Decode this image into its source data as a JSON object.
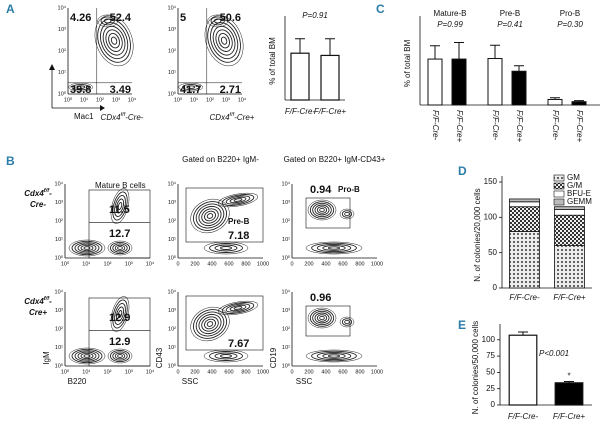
{
  "panel_labels": {
    "a": "A",
    "b": "B",
    "c": "C",
    "d": "D",
    "e": "E"
  },
  "log_ticks": [
    "10⁰",
    "10¹",
    "10²",
    "10³",
    "10⁴"
  ],
  "linear_ticks": [
    0,
    200,
    400,
    600,
    800,
    1000
  ],
  "flow_a": {
    "x_label": "Mac1",
    "plots": [
      {
        "quadrants": [
          4.26,
          52.4,
          39.8,
          3.49
        ],
        "caption": {
          "gene": "CDx4",
          "sup": "f/f",
          "dash": "-Cre-"
        }
      },
      {
        "quadrants": [
          5,
          50.6,
          41.7,
          2.71
        ],
        "caption": {
          "gene": "CDx4",
          "sup": "f/f",
          "dash": "-Cre+"
        }
      }
    ]
  },
  "flow_b": {
    "row_labels": [
      {
        "gene": "Cdx4",
        "sup": "f/f",
        "dash": "-",
        "line2": "Cre-"
      },
      {
        "gene": "Cdx4",
        "sup": "f/f",
        "dash": "-",
        "line2": "Cre+"
      }
    ],
    "columns": [
      {
        "heading": "Mature B cells",
        "x_label": "B220",
        "y_label": "IgM",
        "x_scale": "log"
      },
      {
        "heading": "Gated on B220+ IgM-",
        "x_label": "SSC",
        "y_label": "CD43",
        "x_scale": "linear",
        "gate_label": "Pre-B"
      },
      {
        "heading": "Gated on B220+ IgM-CD43+",
        "x_label": "SSC",
        "y_label": "CD19",
        "x_scale": "linear",
        "gate_label": "Pro-B"
      }
    ],
    "rows": [
      [
        [
          11.5,
          12.7
        ],
        [
          7.18
        ],
        [
          0.94
        ]
      ],
      [
        [
          12.9,
          12.9
        ],
        [
          7.67
        ],
        [
          0.96
        ]
      ]
    ]
  },
  "chart_data": [
    {
      "type": "bar",
      "annotation": "P=0.91",
      "ylabel": "% of total BM",
      "categories": [
        "F/F-Cre-",
        "F/F-Cre+"
      ],
      "values": [
        42,
        40
      ],
      "errors": [
        13,
        15
      ],
      "bar_colors": [
        "#ffffff",
        "#ffffff"
      ],
      "ylim": [
        0,
        70
      ]
    },
    {
      "type": "grouped_bar",
      "ylabel": "% of total BM",
      "groups": [
        "Mature-B",
        "Pre-B",
        "Pro-B"
      ],
      "annotations": [
        "P=0.99",
        "P=0.41",
        "P=0.30"
      ],
      "categories": [
        "F/F-Cre-",
        "F/F-Cre+",
        "F/F-Cre-",
        "F/F-Cre+",
        "F/F-Cre-",
        "F/F-Cre+"
      ],
      "values": [
        8.3,
        8.3,
        8.4,
        6.1,
        1,
        0.6
      ],
      "errors": [
        2.4,
        3,
        2.4,
        1,
        0.3,
        0.2
      ],
      "bar_colors": [
        "#ffffff",
        "#000000",
        "#ffffff",
        "#000000",
        "#ffffff",
        "#000000"
      ],
      "ylim": [
        0,
        15
      ]
    },
    {
      "type": "stacked_bar",
      "ylabel": "N. of colonies/20,000 cells",
      "categories": [
        "F/F-Cre-",
        "F/F-Cre+"
      ],
      "series": [
        {
          "name": "GM",
          "color": "#555555",
          "pattern": "dots",
          "values": [
            80,
            60
          ]
        },
        {
          "name": "G/M",
          "color": "#333333",
          "pattern": "checker",
          "values": [
            35,
            43
          ]
        },
        {
          "name": "BFU-E",
          "color": "#ffffff",
          "values": [
            7,
            8
          ]
        },
        {
          "name": "GEMM",
          "color": "#bbbbbb",
          "values": [
            4,
            4
          ]
        }
      ],
      "ylim": [
        0,
        150
      ],
      "yticks": [
        0,
        50,
        100,
        150
      ]
    },
    {
      "type": "bar",
      "annotation": "P<0.001",
      "marker": "*",
      "ylabel": "N. of colonies/50,000 cells",
      "categories": [
        "F/F-Cre-",
        "F/F-Cre+"
      ],
      "values": [
        107,
        34
      ],
      "errors": [
        5,
        2
      ],
      "bar_colors": [
        "#ffffff",
        "#000000"
      ],
      "ylim": [
        0,
        115
      ],
      "yticks": [
        0,
        25,
        50,
        75,
        100
      ]
    }
  ]
}
